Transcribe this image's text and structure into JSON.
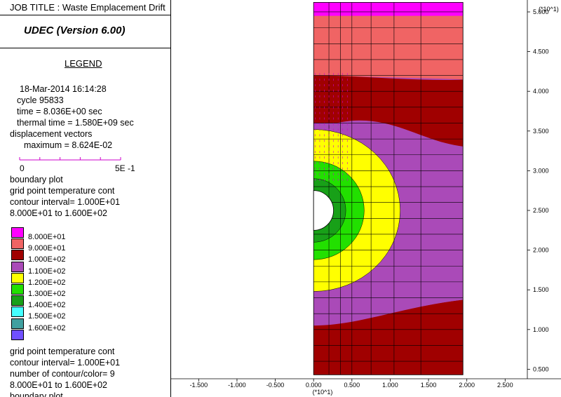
{
  "header": {
    "job_title": "JOB TITLE :  Waste Emplacement Drift",
    "program": "UDEC (Version 6.00)"
  },
  "legend": {
    "heading": "LEGEND",
    "date_time": "18-Mar-2014  16:14:28",
    "cycle": "cycle     95833",
    "time": "time  =  8.036E+00 sec",
    "thermal_time": "thermal time = 1.580E+09 sec",
    "displacement_title": "displacement vectors",
    "displacement_max": "maximum =    8.624E-02",
    "scale_min": "0",
    "scale_max": "5E -1",
    "scale_color": "#cc00cc",
    "boundary": "boundary plot",
    "contour_title": "grid point temperature cont",
    "contour_interval": "contour interval= 1.000E+01",
    "contour_range": " 8.000E+01 to  1.600E+02",
    "levels": [
      {
        "label": "8.000E+01",
        "color": "#ff00ff"
      },
      {
        "label": "9.000E+01",
        "color": "#f06464"
      },
      {
        "label": "1.000E+02",
        "color": "#a00000"
      },
      {
        "label": "1.100E+02",
        "color": "#aa4ab8"
      },
      {
        "label": "1.200E+02",
        "color": "#ffff00"
      },
      {
        "label": "1.300E+02",
        "color": "#22e000"
      },
      {
        "label": "1.400E+02",
        "color": "#18a018"
      },
      {
        "label": "1.500E+02",
        "color": "#44ffff"
      },
      {
        "label": "1.600E+02",
        "color": "#40a0a0"
      },
      {
        "label": "",
        "color": "#7050ff"
      }
    ],
    "contour2_title": "grid point temperature cont",
    "contour2_interval": "contour interval= 1.000E+01",
    "contour2_count": "number of contour/color=  9",
    "contour2_range": " 8.000E+01 to  1.600E+02",
    "contour2_boundary": "boundary plot"
  },
  "chart_data": {
    "type": "heatmap",
    "x_multiplier": "(*10^1)",
    "y_multiplier": "(*10^1)",
    "x_ticks": [
      "-1.500",
      "-1.000",
      "-0.500",
      "0.000",
      "0.500",
      "1.000",
      "1.500",
      "2.000",
      "2.500"
    ],
    "x_tick_values": [
      -1.5,
      -1.0,
      -0.5,
      0.0,
      0.5,
      1.0,
      1.5,
      2.0,
      2.5
    ],
    "y_ticks": [
      "0.500",
      "1.000",
      "1.500",
      "2.000",
      "2.500",
      "3.000",
      "3.500",
      "4.000",
      "4.500",
      "5.000"
    ],
    "y_tick_values": [
      0.5,
      1.0,
      1.5,
      2.0,
      2.5,
      3.0,
      3.5,
      4.0,
      4.5,
      5.0
    ],
    "xlim": [
      -1.86,
      2.79
    ],
    "ylim": [
      0.38,
      5.15
    ],
    "model_extent": {
      "x": [
        0.0,
        1.95
      ],
      "y": [
        0.43,
        5.12
      ]
    },
    "drift": {
      "center": [
        0.0,
        2.5
      ],
      "radius": 0.26
    },
    "temperature_range": [
      80,
      160
    ],
    "contour_interval": 10
  }
}
